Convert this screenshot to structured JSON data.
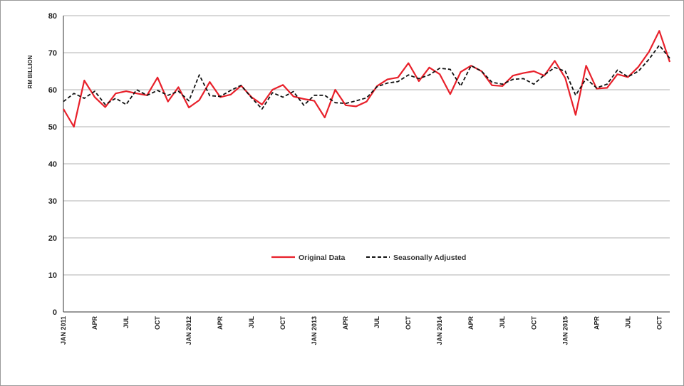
{
  "chart_data": {
    "type": "line",
    "title": "",
    "xlabel": "",
    "ylabel": "RM BILLION",
    "ylim": [
      0,
      80
    ],
    "yticks": [
      "0",
      "10",
      "20",
      "30",
      "40",
      "50",
      "60",
      "70",
      "80"
    ],
    "grid": true,
    "legend_position": "center",
    "x": [
      "Jan 2011",
      "Feb 2011",
      "Mar 2011",
      "Apr 2011",
      "May 2011",
      "Jun 2011",
      "Jul 2011",
      "Aug 2011",
      "Sep 2011",
      "Oct 2011",
      "Nov 2011",
      "Dec 2011",
      "Jan 2012",
      "Feb 2012",
      "Mar 2012",
      "Apr 2012",
      "May 2012",
      "Jun 2012",
      "Jul 2012",
      "Aug 2012",
      "Sep 2012",
      "Oct 2012",
      "Nov 2012",
      "Dec 2012",
      "Jan 2013",
      "Feb 2013",
      "Mar 2013",
      "Apr 2013",
      "May 2013",
      "Jun 2013",
      "Jul 2013",
      "Aug 2013",
      "Sep 2013",
      "Oct 2013",
      "Nov 2013",
      "Dec 2013",
      "Jan 2014",
      "Feb 2014",
      "Mar 2014",
      "Apr 2014",
      "May 2014",
      "Jun 2014",
      "Jul 2014",
      "Aug 2014",
      "Sep 2014",
      "Oct 2014",
      "Nov 2014",
      "Dec 2014",
      "Jan 2015",
      "Feb 2015",
      "Mar 2015",
      "Apr 2015",
      "May 2015",
      "Jun 2015",
      "Jul 2015",
      "Aug 2015",
      "Sep 2015",
      "Oct 2015",
      "Nov 2015"
    ],
    "x_tick_labels": [
      {
        "index": 0,
        "label": "JAN 2011"
      },
      {
        "index": 3,
        "label": "APR"
      },
      {
        "index": 6,
        "label": "JUL"
      },
      {
        "index": 9,
        "label": "OCT"
      },
      {
        "index": 12,
        "label": "JAN 2012"
      },
      {
        "index": 15,
        "label": "APR"
      },
      {
        "index": 18,
        "label": "JUL"
      },
      {
        "index": 21,
        "label": "OCT"
      },
      {
        "index": 24,
        "label": "JAN 2013"
      },
      {
        "index": 27,
        "label": "APR"
      },
      {
        "index": 30,
        "label": "JUL"
      },
      {
        "index": 33,
        "label": "OCT"
      },
      {
        "index": 36,
        "label": "JAN 2014"
      },
      {
        "index": 39,
        "label": "APR"
      },
      {
        "index": 42,
        "label": "JUL"
      },
      {
        "index": 45,
        "label": "OCT"
      },
      {
        "index": 48,
        "label": "JAN 2015"
      },
      {
        "index": 51,
        "label": "APR"
      },
      {
        "index": 54,
        "label": "JUL"
      },
      {
        "index": 57,
        "label": "OCT"
      }
    ],
    "series": [
      {
        "name": "Original Data",
        "color": "#e8202a",
        "dash": "solid",
        "values": [
          54.8,
          50.0,
          62.5,
          58.0,
          55.3,
          59.0,
          59.6,
          59.0,
          58.5,
          63.3,
          56.8,
          60.7,
          55.2,
          57.2,
          62.1,
          58.0,
          58.7,
          61.1,
          58.0,
          56.0,
          60.0,
          61.3,
          58.2,
          57.5,
          57.0,
          52.5,
          60.0,
          55.8,
          55.5,
          56.8,
          61.0,
          62.8,
          63.3,
          67.2,
          62.3,
          66.0,
          64.2,
          58.8,
          64.8,
          66.5,
          65.0,
          61.2,
          61.0,
          63.8,
          64.5,
          65.0,
          63.8,
          67.8,
          63.2,
          53.2,
          66.5,
          60.3,
          60.5,
          64.2,
          63.4,
          66.2,
          70.2,
          75.9,
          67.5
        ]
      },
      {
        "name": "Seasonally Adjusted",
        "color": "#111111",
        "dash": "dashed",
        "values": [
          56.8,
          59.0,
          57.7,
          59.6,
          56.0,
          57.7,
          56.0,
          60.0,
          58.5,
          59.8,
          58.5,
          59.6,
          57.0,
          64.0,
          58.4,
          58.2,
          59.8,
          61.2,
          57.8,
          54.8,
          59.2,
          58.0,
          59.5,
          55.8,
          58.5,
          58.5,
          56.5,
          56.3,
          57.0,
          57.8,
          60.8,
          61.8,
          62.2,
          64.0,
          63.0,
          64.0,
          65.8,
          65.5,
          61.0,
          66.5,
          65.0,
          62.0,
          61.5,
          62.8,
          63.0,
          61.5,
          64.0,
          66.0,
          65.0,
          58.5,
          63.0,
          60.5,
          61.5,
          65.3,
          63.5,
          65.0,
          68.2,
          72.0,
          68.5
        ]
      }
    ]
  }
}
